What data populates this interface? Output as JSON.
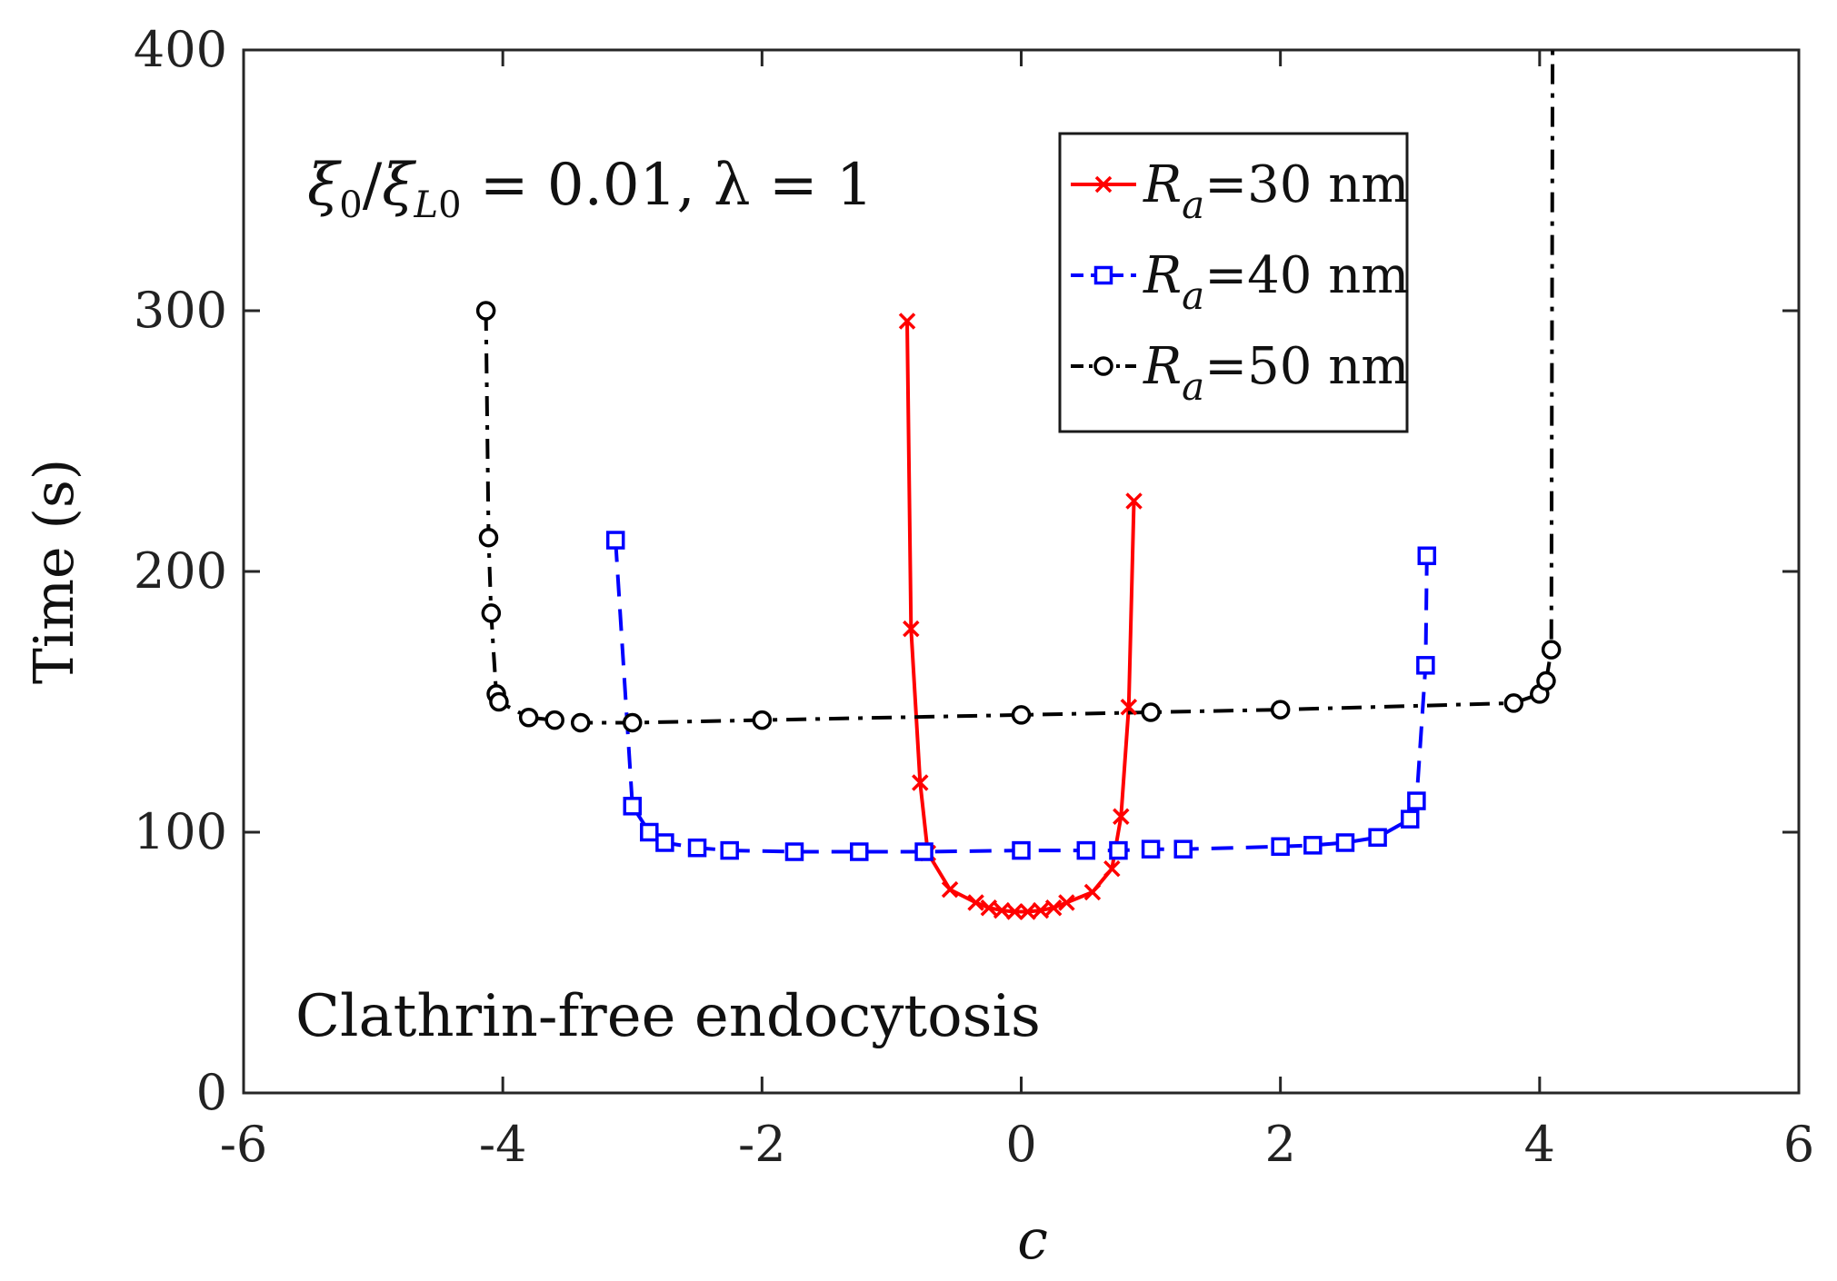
{
  "chart_data": {
    "type": "line",
    "title": "",
    "xlabel": "c",
    "ylabel": "Time (s)",
    "xlim": [
      -6,
      6
    ],
    "ylim": [
      0,
      400
    ],
    "xticks": [
      -6,
      -4,
      -2,
      0,
      2,
      4,
      6
    ],
    "yticks": [
      0,
      100,
      200,
      300,
      400
    ],
    "xtick_labels": [
      "-6",
      "-4",
      "-2",
      "0",
      "2",
      "4",
      "6"
    ],
    "ytick_labels": [
      "0",
      "100",
      "200",
      "300",
      "400"
    ],
    "grid": false,
    "legend_position": "top-right",
    "annotations": [
      {
        "id": "param",
        "text": "ξ0/ξL0 = 0.01, λ = 1"
      },
      {
        "id": "label",
        "text": "Clathrin-free endocytosis"
      }
    ],
    "series": [
      {
        "name": "Ra=30 nm",
        "legend_prefix": "R",
        "legend_sub": "a",
        "legend_suffix": "=30 nm",
        "color": "#ff0000",
        "line_style": "solid",
        "marker": "x",
        "x": [
          -0.88,
          -0.85,
          -0.78,
          -0.72,
          -0.55,
          -0.35,
          -0.25,
          -0.15,
          -0.05,
          0.05,
          0.15,
          0.25,
          0.35,
          0.55,
          0.7,
          0.77,
          0.83,
          0.87
        ],
        "y": [
          296,
          178,
          119,
          92,
          78,
          73,
          71,
          70,
          69.5,
          69.5,
          70,
          71,
          73,
          77,
          86,
          106,
          148,
          227
        ]
      },
      {
        "name": "Ra=40 nm",
        "legend_prefix": "R",
        "legend_sub": "a",
        "legend_suffix": "=40 nm",
        "color": "#0000ff",
        "line_style": "dashed",
        "marker": "square",
        "x": [
          -3.13,
          -3.0,
          -2.87,
          -2.75,
          -2.5,
          -2.25,
          -1.75,
          -1.25,
          -0.75,
          0.0,
          0.5,
          0.75,
          1.0,
          1.25,
          2.0,
          2.25,
          2.5,
          2.75,
          3.0,
          3.05,
          3.12,
          3.13
        ],
        "y": [
          212,
          110,
          100,
          96,
          94,
          93,
          92.5,
          92.5,
          92.5,
          93,
          93,
          93,
          93.5,
          93.5,
          94.5,
          95,
          96,
          98,
          105,
          112,
          164,
          206
        ]
      },
      {
        "name": "Ra=50 nm",
        "legend_prefix": "R",
        "legend_sub": "a",
        "legend_suffix": "=50 nm",
        "color": "#000000",
        "line_style": "dashdot",
        "marker": "circle",
        "x": [
          -4.13,
          -4.11,
          -4.09,
          -4.05,
          -4.03,
          -3.8,
          -3.6,
          -3.4,
          -3.0,
          -2.0,
          0.0,
          1.0,
          2.0,
          3.8,
          4.0,
          4.05,
          4.09,
          4.1
        ],
        "y": [
          300,
          213,
          184,
          153,
          150,
          144,
          143,
          142,
          142,
          143,
          145,
          146,
          147,
          149.5,
          153,
          158,
          170,
          400
        ]
      }
    ]
  }
}
